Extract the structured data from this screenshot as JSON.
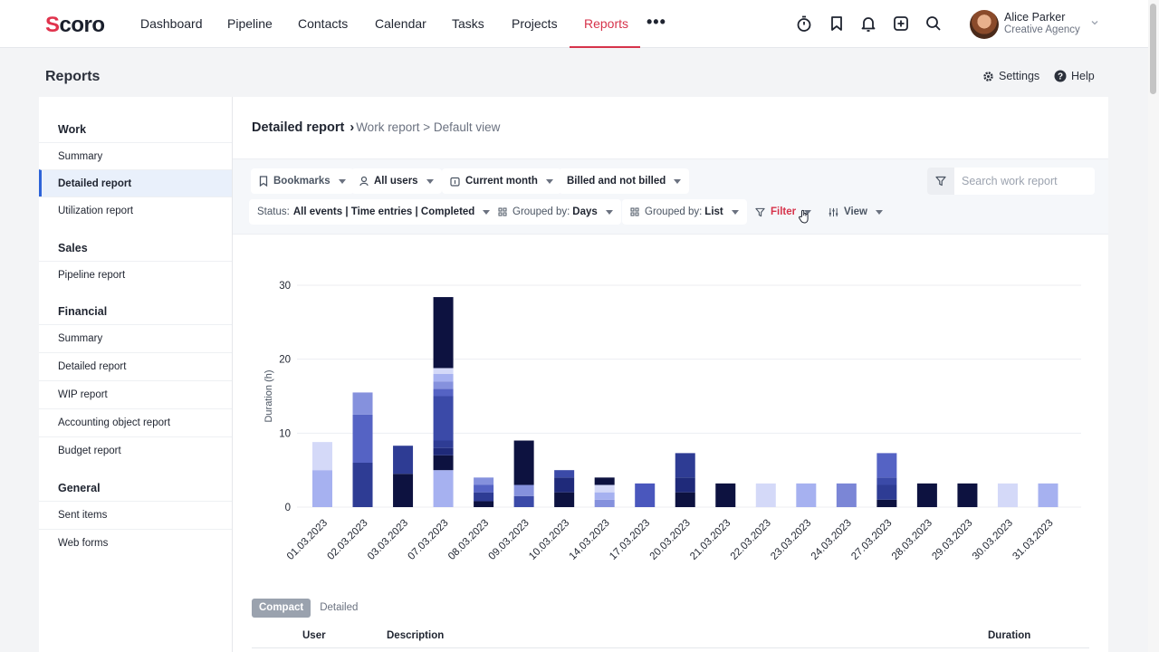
{
  "app": {
    "logo_prefix": "S",
    "logo_rest": "coro"
  },
  "nav": {
    "items": [
      "Dashboard",
      "Pipeline",
      "Contacts",
      "Calendar",
      "Tasks",
      "Projects",
      "Reports"
    ],
    "active": "Reports",
    "more": "•••"
  },
  "user": {
    "name": "Alice Parker",
    "org": "Creative Agency"
  },
  "page": {
    "title": "Reports",
    "settings": "Settings",
    "help": "Help"
  },
  "sidebar": {
    "sections": [
      {
        "heading": "Work",
        "items": [
          "Summary",
          "Detailed report",
          "Utilization report"
        ]
      },
      {
        "heading": "Sales",
        "items": [
          "Pipeline report"
        ]
      },
      {
        "heading": "Financial",
        "items": [
          "Summary",
          "Detailed report",
          "WIP report",
          "Accounting object report",
          "Budget report"
        ]
      },
      {
        "heading": "General",
        "items": [
          "Sent items",
          "Web forms"
        ]
      }
    ],
    "active": "Detailed report"
  },
  "breadcrumb": {
    "current": "Detailed report",
    "separator": "›",
    "rest": "Work report > Default view"
  },
  "toolbar": {
    "bookmarks": "Bookmarks",
    "users": "All users",
    "period": "Current month",
    "billing": "Billed and not billed",
    "status_prefix": "Status:",
    "status_value": "All events | Time entries | Completed",
    "group1_prefix": "Grouped by:",
    "group1_value": "Days",
    "group2_prefix": "Grouped by:",
    "group2_value": "List",
    "filter": "Filter",
    "view": "View",
    "search_placeholder": "Search work report"
  },
  "chart_data": {
    "type": "bar",
    "stacked": true,
    "ylabel": "Duration (h)",
    "ylim": [
      0,
      30
    ],
    "yticks": [
      0,
      10,
      20,
      30
    ],
    "grid": true,
    "categories": [
      "01.03.2023",
      "02.03.2023",
      "03.03.2023",
      "07.03.2023",
      "08.03.2023",
      "09.03.2023",
      "10.03.2023",
      "14.03.2023",
      "17.03.2023",
      "20.03.2023",
      "21.03.2023",
      "22.03.2023",
      "23.03.2023",
      "24.03.2023",
      "27.03.2023",
      "28.03.2023",
      "29.03.2023",
      "30.03.2023",
      "31.03.2023"
    ],
    "stacks": [
      [
        {
          "v": 5,
          "c": "#a6b1f0"
        },
        {
          "v": 3.8,
          "c": "#d4d9f8"
        }
      ],
      [
        {
          "v": 6,
          "c": "#2e3c94"
        },
        {
          "v": 6.5,
          "c": "#5563c4"
        },
        {
          "v": 3,
          "c": "#8591dd"
        }
      ],
      [
        {
          "v": 4.5,
          "c": "#0d1240"
        },
        {
          "v": 3.8,
          "c": "#2e3c94"
        }
      ],
      [
        {
          "v": 5,
          "c": "#a6b1f0"
        },
        {
          "v": 2,
          "c": "#0d1240"
        },
        {
          "v": 1,
          "c": "#1f2a7a"
        },
        {
          "v": 1,
          "c": "#2e3c94"
        },
        {
          "v": 6,
          "c": "#3b4aa8"
        },
        {
          "v": 1,
          "c": "#5563c4"
        },
        {
          "v": 1,
          "c": "#8591dd"
        },
        {
          "v": 1,
          "c": "#a6b1f0"
        },
        {
          "v": 0.8,
          "c": "#d4d9f8"
        },
        {
          "v": 9.6,
          "c": "#0d1240"
        }
      ],
      [
        {
          "v": 0.8,
          "c": "#0d1240"
        },
        {
          "v": 1.2,
          "c": "#2e3c94"
        },
        {
          "v": 1,
          "c": "#5563c4"
        },
        {
          "v": 1,
          "c": "#8591dd"
        }
      ],
      [
        {
          "v": 1.5,
          "c": "#3b4aa8"
        },
        {
          "v": 1.5,
          "c": "#8591dd"
        },
        {
          "v": 6,
          "c": "#0d1240"
        }
      ],
      [
        {
          "v": 2,
          "c": "#0d1240"
        },
        {
          "v": 2,
          "c": "#1f2a7a"
        },
        {
          "v": 1,
          "c": "#3b4aa8"
        }
      ],
      [
        {
          "v": 1,
          "c": "#8591dd"
        },
        {
          "v": 1,
          "c": "#a6b1f0"
        },
        {
          "v": 1,
          "c": "#d4d9f8"
        },
        {
          "v": 1,
          "c": "#0d1240"
        }
      ],
      [
        {
          "v": 3.2,
          "c": "#4a57bd"
        }
      ],
      [
        {
          "v": 2,
          "c": "#0d1240"
        },
        {
          "v": 2,
          "c": "#1f2a7a"
        },
        {
          "v": 3.3,
          "c": "#2e3c94"
        }
      ],
      [
        {
          "v": 3.2,
          "c": "#0d1240"
        }
      ],
      [
        {
          "v": 3.2,
          "c": "#d4d9f8"
        }
      ],
      [
        {
          "v": 3.2,
          "c": "#a6b1f0"
        }
      ],
      [
        {
          "v": 3.2,
          "c": "#7b86d6"
        }
      ],
      [
        {
          "v": 1,
          "c": "#0d1240"
        },
        {
          "v": 2,
          "c": "#2e3c94"
        },
        {
          "v": 1,
          "c": "#3b4aa8"
        },
        {
          "v": 3.3,
          "c": "#5563c4"
        }
      ],
      [
        {
          "v": 3.2,
          "c": "#0d1240"
        }
      ],
      [
        {
          "v": 3.2,
          "c": "#0d1240"
        }
      ],
      [
        {
          "v": 3.2,
          "c": "#d4d9f8"
        }
      ],
      [
        {
          "v": 3.2,
          "c": "#a6b1f0"
        }
      ]
    ]
  },
  "table": {
    "modes": [
      "Compact",
      "Detailed"
    ],
    "active_mode": "Compact",
    "columns": [
      "User",
      "Description",
      "Duration"
    ]
  },
  "colors": {
    "accent": "#d6334b",
    "active_blue": "#2d63d8"
  }
}
